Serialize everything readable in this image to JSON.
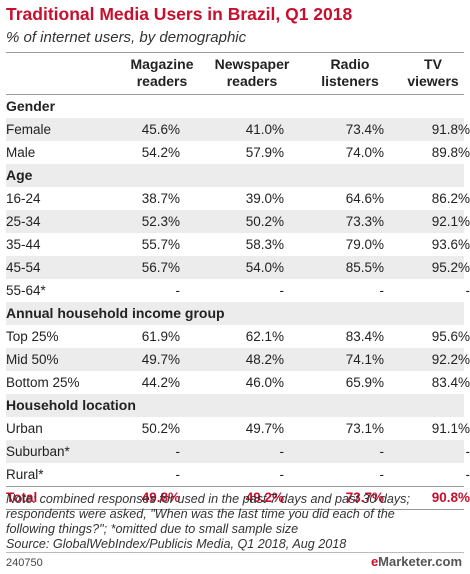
{
  "title": "Traditional Media Users in Brazil, Q1 2018",
  "subtitle": "% of internet users, by demographic",
  "columns": [
    [
      "Magazine",
      "readers"
    ],
    [
      "Newspaper",
      "readers"
    ],
    [
      "Radio",
      "listeners"
    ],
    [
      "TV",
      "viewers"
    ]
  ],
  "rows": [
    {
      "type": "section",
      "label": "Gender"
    },
    {
      "type": "data",
      "label": "Female",
      "values": [
        "45.6%",
        "41.0%",
        "73.4%",
        "91.8%"
      ]
    },
    {
      "type": "data",
      "label": "Male",
      "values": [
        "54.2%",
        "57.9%",
        "74.0%",
        "89.8%"
      ]
    },
    {
      "type": "section",
      "label": "Age"
    },
    {
      "type": "data",
      "label": "16-24",
      "values": [
        "38.7%",
        "39.0%",
        "64.6%",
        "86.2%"
      ]
    },
    {
      "type": "data",
      "label": "25-34",
      "values": [
        "52.3%",
        "50.2%",
        "73.3%",
        "92.1%"
      ]
    },
    {
      "type": "data",
      "label": "35-44",
      "values": [
        "55.7%",
        "58.3%",
        "79.0%",
        "93.6%"
      ]
    },
    {
      "type": "data",
      "label": "45-54",
      "values": [
        "56.7%",
        "54.0%",
        "85.5%",
        "95.2%"
      ]
    },
    {
      "type": "data",
      "label": "55-64*",
      "values": [
        "-",
        "-",
        "-",
        "-"
      ]
    },
    {
      "type": "section",
      "label": "Annual household income group"
    },
    {
      "type": "data",
      "label": "Top 25%",
      "values": [
        "61.9%",
        "62.1%",
        "83.4%",
        "95.6%"
      ]
    },
    {
      "type": "data",
      "label": "Mid 50%",
      "values": [
        "49.7%",
        "48.2%",
        "74.1%",
        "92.2%"
      ]
    },
    {
      "type": "data",
      "label": "Bottom 25%",
      "values": [
        "44.2%",
        "46.0%",
        "65.9%",
        "83.4%"
      ]
    },
    {
      "type": "section",
      "label": "Household location"
    },
    {
      "type": "data",
      "label": "Urban",
      "values": [
        "50.2%",
        "49.7%",
        "73.1%",
        "91.1%"
      ]
    },
    {
      "type": "data",
      "label": "Suburban*",
      "values": [
        "-",
        "-",
        "-",
        "-"
      ]
    },
    {
      "type": "data",
      "label": "Rural*",
      "values": [
        "-",
        "-",
        "-",
        "-"
      ]
    },
    {
      "type": "total",
      "label": "Total",
      "values": [
        "49.8%",
        "49.2%",
        "73.7%",
        "90.8%"
      ]
    }
  ],
  "note_lines": [
    "Note: combined responses for used in the past 7 days and past 30 days;",
    "respondents were asked, \"When was the last time you did each of the",
    "following things?\"; *omitted due to small sample size",
    "Source: GlobalWebIndex/Publicis Media, Q1 2018, Aug 2018"
  ],
  "footer_id": "240750",
  "brand": {
    "prefix": "e",
    "name": "Marketer",
    "suffix": ".com"
  },
  "colors": {
    "accent": "#c8102e",
    "band": "#ececec"
  },
  "chart_data": {
    "type": "table",
    "title": "Traditional Media Users in Brazil, Q1 2018",
    "subtitle": "% of internet users, by demographic",
    "columns": [
      "Magazine readers",
      "Newspaper readers",
      "Radio listeners",
      "TV viewers"
    ],
    "groups": [
      {
        "name": "Gender",
        "rows": [
          {
            "label": "Female",
            "values": [
              45.6,
              41.0,
              73.4,
              91.8
            ]
          },
          {
            "label": "Male",
            "values": [
              54.2,
              57.9,
              74.0,
              89.8
            ]
          }
        ]
      },
      {
        "name": "Age",
        "rows": [
          {
            "label": "16-24",
            "values": [
              38.7,
              39.0,
              64.6,
              86.2
            ]
          },
          {
            "label": "25-34",
            "values": [
              52.3,
              50.2,
              73.3,
              92.1
            ]
          },
          {
            "label": "35-44",
            "values": [
              55.7,
              58.3,
              79.0,
              93.6
            ]
          },
          {
            "label": "45-54",
            "values": [
              56.7,
              54.0,
              85.5,
              95.2
            ]
          },
          {
            "label": "55-64*",
            "values": [
              null,
              null,
              null,
              null
            ]
          }
        ]
      },
      {
        "name": "Annual household income group",
        "rows": [
          {
            "label": "Top 25%",
            "values": [
              61.9,
              62.1,
              83.4,
              95.6
            ]
          },
          {
            "label": "Mid 50%",
            "values": [
              49.7,
              48.2,
              74.1,
              92.2
            ]
          },
          {
            "label": "Bottom 25%",
            "values": [
              44.2,
              46.0,
              65.9,
              83.4
            ]
          }
        ]
      },
      {
        "name": "Household location",
        "rows": [
          {
            "label": "Urban",
            "values": [
              50.2,
              49.7,
              73.1,
              91.1
            ]
          },
          {
            "label": "Suburban*",
            "values": [
              null,
              null,
              null,
              null
            ]
          },
          {
            "label": "Rural*",
            "values": [
              null,
              null,
              null,
              null
            ]
          }
        ]
      }
    ],
    "total": {
      "label": "Total",
      "values": [
        49.8,
        49.2,
        73.7,
        90.8
      ]
    }
  }
}
